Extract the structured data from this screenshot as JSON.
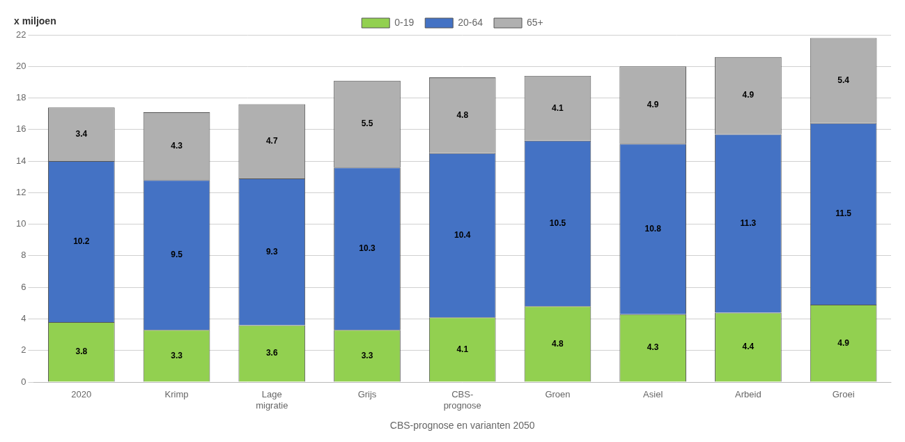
{
  "chart_data": {
    "type": "bar",
    "stacked": true,
    "categories": [
      "2020",
      "Krimp",
      "Lage\nmigratie",
      "Grijs",
      "CBS-\nprognose",
      "Groen",
      "Asiel",
      "Arbeid",
      "Groei"
    ],
    "series": [
      {
        "name": "0-19",
        "color": "#92d050",
        "values": [
          3.8,
          3.3,
          3.6,
          3.3,
          4.1,
          4.8,
          4.3,
          4.4,
          4.9
        ]
      },
      {
        "name": "20-64",
        "color": "#4472c4",
        "values": [
          10.2,
          9.5,
          9.3,
          10.3,
          10.4,
          10.5,
          10.8,
          11.3,
          11.5
        ]
      },
      {
        "name": "65+",
        "color": "#b0b0b0",
        "values": [
          3.4,
          4.3,
          4.7,
          5.5,
          4.8,
          4.1,
          4.9,
          4.9,
          5.4
        ]
      }
    ],
    "xlabel": "CBS-prognose en varianten 2050",
    "ylabel": "x miljoen",
    "ylim": [
      0,
      22
    ],
    "yticks": [
      0,
      2,
      4,
      6,
      8,
      10,
      12,
      14,
      16,
      18,
      20,
      22
    ],
    "grid": true,
    "legend": "top",
    "data_labels": true
  }
}
